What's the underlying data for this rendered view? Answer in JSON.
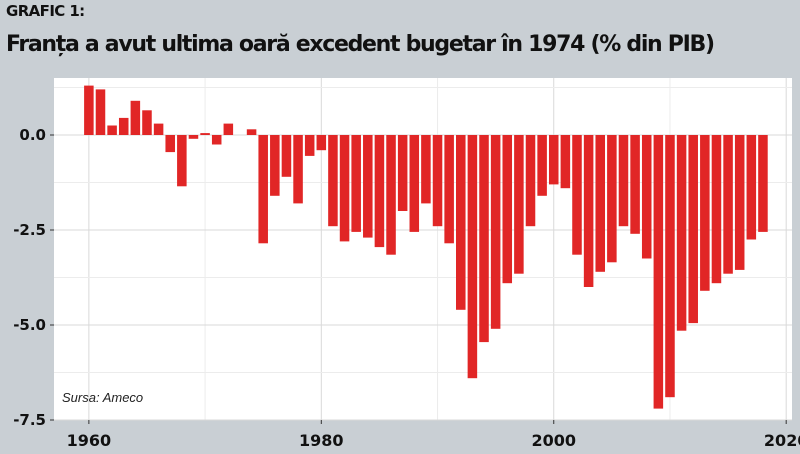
{
  "header": {
    "label": "GRAFIC 1:",
    "title": "Franța a avut ultima oară excedent bugetar în 1974 (% din PIB)"
  },
  "source": "Sursa: Ameco",
  "colors": {
    "bar": "#e12626",
    "background": "#c9cfd4",
    "plot_background": "#ffffff",
    "grid": "#d9d9d9"
  },
  "chart_data": {
    "type": "bar",
    "title": "Franța a avut ultima oară excedent bugetar în 1974 (% din PIB)",
    "xlabel": "",
    "ylabel": "",
    "x_ticks": [
      "1960",
      "1980",
      "2000",
      "2020"
    ],
    "y_ticks": [
      "0.0",
      "-2.5",
      "-5.0",
      "-7.5"
    ],
    "xlim": [
      1957,
      2020.5
    ],
    "ylim": [
      -7.5,
      1.5
    ],
    "grid": true,
    "categories": [
      1960,
      1961,
      1962,
      1963,
      1964,
      1965,
      1966,
      1967,
      1968,
      1969,
      1970,
      1971,
      1972,
      1973,
      1974,
      1975,
      1976,
      1977,
      1978,
      1979,
      1980,
      1981,
      1982,
      1983,
      1984,
      1985,
      1986,
      1987,
      1988,
      1989,
      1990,
      1991,
      1992,
      1993,
      1994,
      1995,
      1996,
      1997,
      1998,
      1999,
      2000,
      2001,
      2002,
      2003,
      2004,
      2005,
      2006,
      2007,
      2008,
      2009,
      2010,
      2011,
      2012,
      2013,
      2014,
      2015,
      2016,
      2017,
      2018
    ],
    "values": [
      1.3,
      1.2,
      0.25,
      0.45,
      0.9,
      0.65,
      0.3,
      -0.45,
      -1.35,
      -0.1,
      0.05,
      -0.25,
      0.3,
      0.0,
      0.15,
      -2.85,
      -1.6,
      -1.1,
      -1.8,
      -0.55,
      -0.4,
      -2.4,
      -2.8,
      -2.55,
      -2.7,
      -2.95,
      -3.15,
      -2.0,
      -2.55,
      -1.8,
      -2.4,
      -2.85,
      -4.6,
      -6.4,
      -5.45,
      -5.1,
      -3.9,
      -3.65,
      -2.4,
      -1.6,
      -1.3,
      -1.4,
      -3.15,
      -4.0,
      -3.6,
      -3.35,
      -2.4,
      -2.6,
      -3.25,
      -7.2,
      -6.9,
      -5.15,
      -4.95,
      -4.1,
      -3.9,
      -3.65,
      -3.55,
      -2.75,
      -2.55
    ]
  }
}
